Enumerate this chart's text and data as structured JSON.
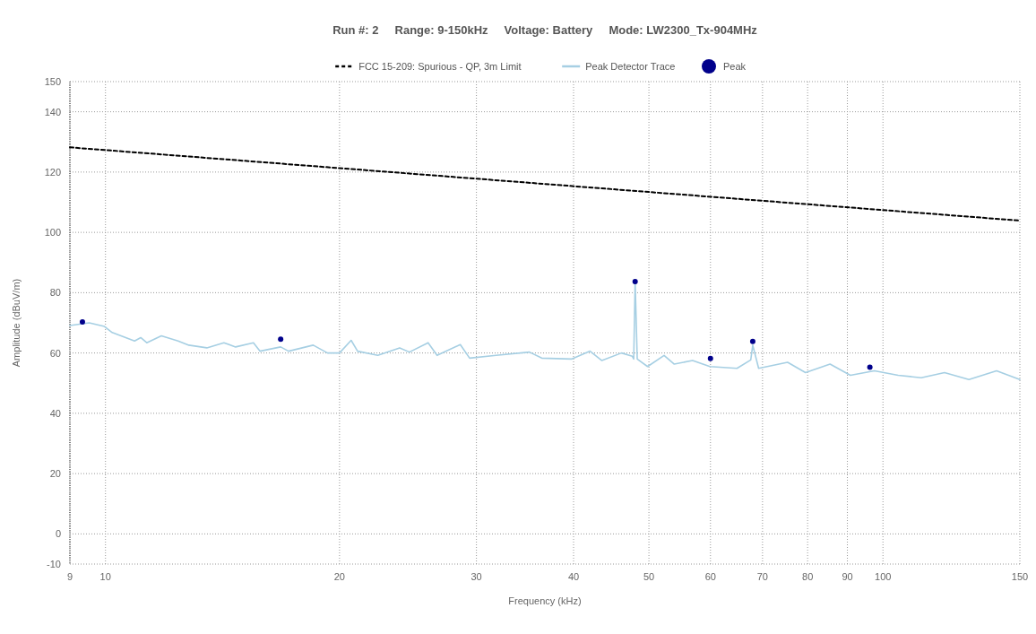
{
  "chart_data": {
    "type": "line",
    "title": "Run #: 2     Range: 9-150kHz     Voltage: Battery     Mode: LW2300_Tx-904MHz",
    "xlabel": "Frequency (kHz)",
    "ylabel": "Amplitude (dBuV/m)",
    "log": "x",
    "grid": true,
    "legend": "top",
    "xlim": [
      9,
      150
    ],
    "xticks": [
      9,
      10,
      20,
      30,
      40,
      50,
      60,
      70,
      80,
      90,
      100,
      150
    ],
    "ylim": [
      -10,
      150
    ],
    "yticks": [
      -10,
      0,
      20,
      40,
      60,
      80,
      100,
      120,
      140,
      150
    ],
    "series": [
      {
        "name": "FCC 15-209: Spurious - QP, 3m Limit",
        "line_style": "dashed",
        "color": "#000000",
        "x": [
          9,
          150
        ],
        "values": [
          128.2,
          103.9
        ]
      },
      {
        "name": "Peak Detector Trace",
        "line_style": "solid",
        "color": "#a6cfe3",
        "x": [
          9,
          9.53,
          9.97,
          10.2,
          10.9,
          11.1,
          11.3,
          11.8,
          12.4,
          12.8,
          13.5,
          14.2,
          14.7,
          15.5,
          15.8,
          16.8,
          17.2,
          18.5,
          19.3,
          20,
          20.7,
          21.1,
          22.4,
          23.9,
          24.6,
          26.0,
          26.7,
          28.6,
          29.4,
          31.8,
          35.1,
          36.4,
          39.8,
          42.0,
          43.5,
          46.1,
          47.6,
          47.8,
          48.0,
          48.3,
          49.8,
          52.3,
          53.9,
          56.9,
          59.9,
          64.9,
          67.6,
          68.0,
          69.2,
          75.4,
          79.5,
          85.5,
          90.8,
          97.5,
          104.6,
          112,
          120,
          129,
          140,
          150
        ],
        "values": [
          69.1,
          70,
          68.8,
          66.8,
          64,
          65.1,
          63.4,
          65.7,
          64,
          62.6,
          61.7,
          63.4,
          62,
          63.4,
          60.6,
          62,
          60.6,
          62.6,
          60,
          60,
          64.2,
          60.6,
          59.2,
          61.7,
          60.3,
          63.4,
          59.2,
          62.8,
          58.3,
          59.2,
          60.3,
          58.3,
          58,
          60.6,
          57.5,
          60,
          58.9,
          58,
          83.7,
          58,
          55.5,
          59.2,
          56.3,
          57.5,
          55.5,
          54.9,
          57.7,
          62.6,
          54.9,
          56.9,
          53.5,
          56.3,
          52.6,
          54.1,
          52.6,
          51.8,
          53.5,
          51.2,
          54.1,
          51.2
        ]
      },
      {
        "name": "Peak",
        "type": "scatter",
        "marker": "circle",
        "color": "#00008b",
        "x": [
          9.34,
          16.8,
          48.0,
          60.0,
          68.0,
          96.2
        ],
        "values": [
          70.3,
          64.6,
          83.7,
          58.2,
          63.8,
          55.3
        ]
      }
    ]
  }
}
